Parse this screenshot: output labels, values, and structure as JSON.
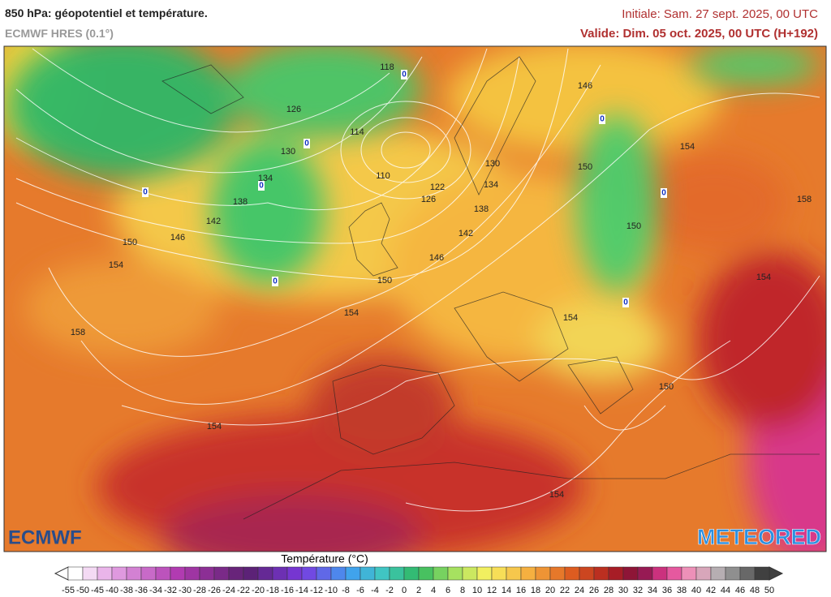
{
  "header": {
    "title": "850 hPa: géopotentiel et température.",
    "subtitle": "ECMWF HRES (0.1°)",
    "initial": "Initiale: Sam. 27 sept. 2025, 00 UTC",
    "valid": "Valide: Dim. 05 oct. 2025, 00 UTC (H+192)"
  },
  "map": {
    "contour_labels": [
      "118",
      "126",
      "114",
      "130",
      "134",
      "110",
      "122",
      "126",
      "130",
      "134",
      "138",
      "138",
      "142",
      "142",
      "146",
      "146",
      "150",
      "154",
      "150",
      "154",
      "158",
      "154",
      "146",
      "150",
      "154",
      "158",
      "150",
      "154",
      "154",
      "150",
      "154"
    ],
    "isotherm_labels": [
      "0",
      "0",
      "0",
      "0",
      "0",
      "0",
      "0",
      "0"
    ],
    "logos": {
      "left": "ECMWF",
      "right": "METEORED"
    }
  },
  "legend": {
    "title": "Température (°C)",
    "ticks": [
      "-55",
      "-50",
      "-45",
      "-40",
      "-38",
      "-36",
      "-34",
      "-32",
      "-30",
      "-28",
      "-26",
      "-24",
      "-22",
      "-20",
      "-18",
      "-16",
      "-14",
      "-12",
      "-10",
      "-8",
      "-6",
      "-4",
      "-2",
      "0",
      "2",
      "4",
      "6",
      "8",
      "10",
      "12",
      "14",
      "16",
      "18",
      "20",
      "22",
      "24",
      "26",
      "28",
      "30",
      "32",
      "34",
      "36",
      "38",
      "40",
      "42",
      "44",
      "46",
      "48",
      "50"
    ]
  }
}
